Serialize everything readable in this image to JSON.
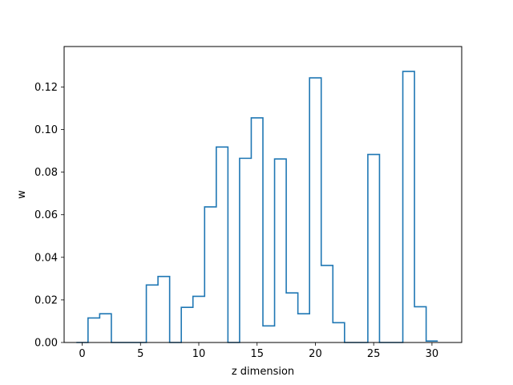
{
  "chart_data": {
    "type": "step",
    "title": "",
    "xlabel": "z dimension",
    "ylabel": "w",
    "xlim": [
      -1.55,
      32.55
    ],
    "ylim": [
      0.0,
      0.139
    ],
    "xticks": [
      0,
      5,
      10,
      15,
      20,
      25,
      30
    ],
    "yticks": [
      0.0,
      0.02,
      0.04,
      0.06,
      0.08,
      0.1,
      0.12
    ],
    "ytick_labels": [
      "0.00",
      "0.02",
      "0.04",
      "0.06",
      "0.08",
      "0.10",
      "0.12"
    ],
    "grid": false,
    "series": [
      {
        "x": [
          0,
          1,
          2,
          3,
          4,
          5,
          6,
          7,
          8,
          9,
          10,
          11,
          12,
          13,
          14,
          15,
          16,
          17,
          18,
          19,
          20,
          21,
          22,
          23,
          24,
          25,
          26,
          27,
          28,
          29,
          30
        ],
        "values": [
          0.0,
          0.0115,
          0.0135,
          0.0,
          0.0,
          0.0,
          0.027,
          0.031,
          0.0,
          0.0165,
          0.0217,
          0.0637,
          0.0918,
          0.0,
          0.0865,
          0.1055,
          0.0078,
          0.0862,
          0.0233,
          0.0135,
          0.1243,
          0.0362,
          0.0093,
          0.0,
          0.0,
          0.0883,
          0.0,
          0.0,
          0.1273,
          0.0168,
          0.0007
        ],
        "color": "#1f77b4"
      }
    ]
  }
}
